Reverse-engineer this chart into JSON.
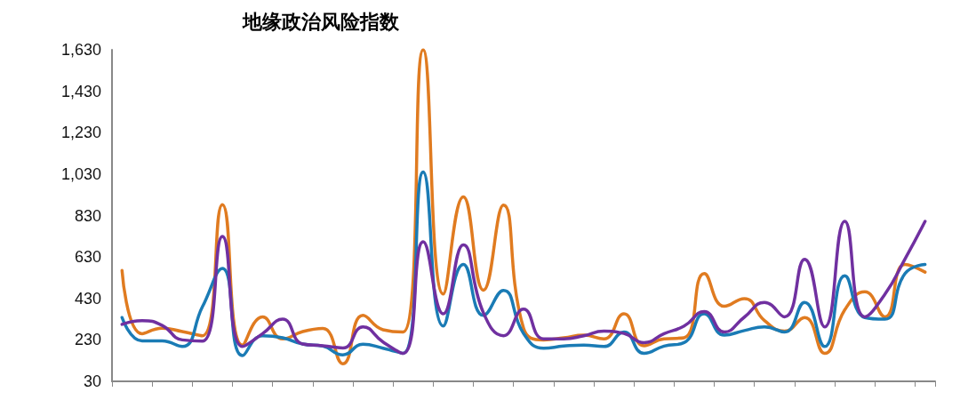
{
  "chart_data": {
    "type": "line",
    "title": "地缘政治风险指数",
    "categories": [
      null,
      null,
      null,
      null,
      null,
      null,
      null,
      null,
      null,
      null,
      null,
      null,
      null,
      null,
      null,
      null,
      null,
      null,
      null,
      null,
      null,
      null,
      null,
      null,
      null,
      null,
      null,
      null,
      null,
      null,
      null,
      null,
      null,
      null,
      null,
      null,
      null,
      null,
      null,
      null,
      null
    ],
    "series": [
      {
        "color": "#e07b20",
        "values": [
          565,
          260,
          286,
          270,
          250,
          883,
          205,
          341,
          235,
          270,
          285,
          115,
          348,
          279,
          268,
          1630,
          451,
          920,
          470,
          880,
          286,
          230,
          240,
          253,
          235,
          356,
          202,
          235,
          240,
          550,
          392,
          429,
          323,
          272,
          338,
          165,
          375,
          462,
          341,
          594,
          557
        ]
      },
      {
        "color": "#1a7bb5",
        "values": [
          338,
          225,
          225,
          198,
          389,
          575,
          154,
          250,
          240,
          210,
          200,
          158,
          209,
          190,
          165,
          1040,
          297,
          594,
          348,
          469,
          261,
          190,
          200,
          205,
          198,
          268,
          165,
          200,
          217,
          356,
          253,
          275,
          293,
          268,
          411,
          198,
          539,
          338,
          330,
          550,
          594
        ]
      },
      {
        "color": "#7030a0",
        "values": [
          305,
          323,
          300,
          230,
          224,
          729,
          198,
          260,
          330,
          210,
          202,
          191,
          293,
          220,
          165,
          703,
          356,
          688,
          361,
          250,
          378,
          235,
          235,
          250,
          272,
          261,
          217,
          260,
          297,
          367,
          268,
          340,
          411,
          341,
          619,
          293,
          802,
          341,
          450,
          620,
          802
        ]
      }
    ],
    "ylim": [
      30,
      1630
    ],
    "yticks": [
      {
        "value": 30,
        "label": "30"
      },
      {
        "value": 230,
        "label": "230"
      },
      {
        "value": 430,
        "label": "430"
      },
      {
        "value": 630,
        "label": "630"
      },
      {
        "value": 830,
        "label": "830"
      },
      {
        "value": 1030,
        "label": "1,030"
      },
      {
        "value": 1230,
        "label": "1,230"
      },
      {
        "value": 1430,
        "label": "1,430"
      },
      {
        "value": 1630,
        "label": "1,630"
      }
    ],
    "tick_labels": "y",
    "grid": false,
    "marker": "none",
    "line_style": "solid"
  }
}
